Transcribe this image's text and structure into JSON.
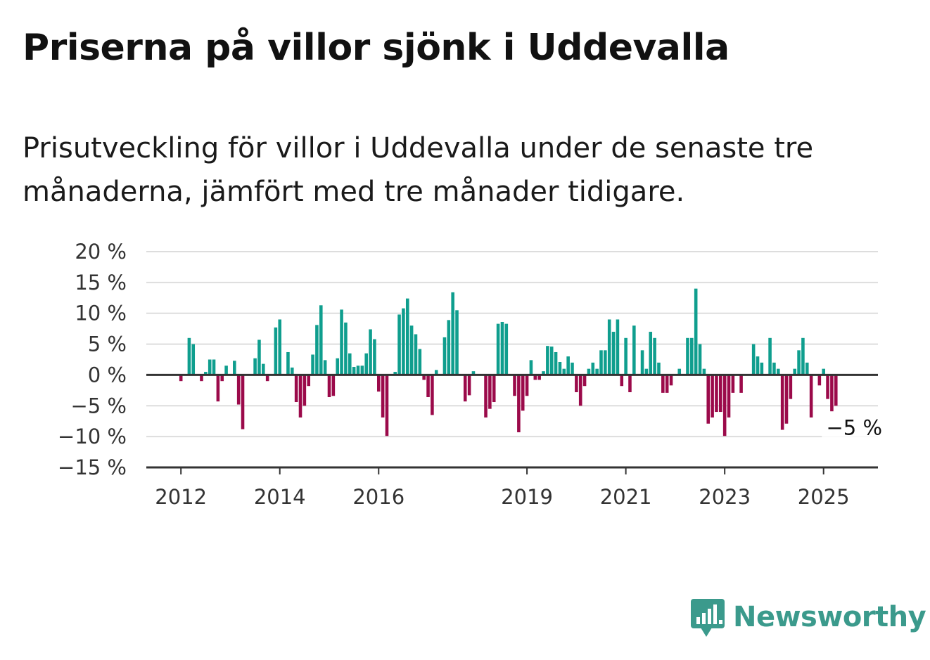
{
  "title": "Priserna på villor sjönk i Uddevalla",
  "subtitle": "Prisutveckling för villor i Uddevalla under de senaste tre månaderna, jämfört med tre månader tidigare.",
  "brand": "Newsworthy",
  "colors": {
    "positive": "#0f9e8e",
    "negative": "#9b0a4a",
    "brand": "#3b9a8c",
    "grid": "#dddddd",
    "axis": "#333333"
  },
  "chart_data": {
    "type": "bar",
    "title": "Priserna på villor sjönk i Uddevalla",
    "xlabel": "",
    "ylabel": "",
    "ylim": [
      -15,
      20
    ],
    "y_ticks": [
      20,
      15,
      10,
      5,
      0,
      -5,
      -10,
      -15
    ],
    "y_tick_labels": [
      "20 %",
      "15 %",
      "10 %",
      "5 %",
      "0 %",
      "−5 %",
      "−10 %",
      "−15 %"
    ],
    "x_range": [
      2011.3,
      2026.1
    ],
    "x_ticks": [
      2012,
      2014,
      2016,
      2019,
      2021,
      2023,
      2025
    ],
    "x_tick_labels": [
      "2012",
      "2014",
      "2016",
      "2019",
      "2021",
      "2023",
      "2025"
    ],
    "grid": true,
    "end_label": "−5 %",
    "series": [
      {
        "start": 2012.0,
        "step_months": 1,
        "values": [
          -1,
          0,
          6,
          5,
          0,
          -1,
          0.5,
          2.5,
          2.5,
          -4.3,
          -1,
          1.5,
          0,
          2.3,
          -4.8,
          -8.8,
          0,
          0,
          2.7,
          5.7,
          1.8,
          -1,
          0,
          7.7,
          9,
          0,
          3.7,
          1.2,
          -4.4,
          -6.9,
          -5,
          -1.8,
          3.3,
          8.1,
          11.3,
          2.4,
          -3.6,
          -3.4,
          2.7,
          10.6,
          8.5,
          3.5,
          1.3,
          1.5,
          1.5,
          3.5,
          7.4,
          5.8,
          -2.7,
          -6.9,
          -9.9,
          0,
          0.5,
          9.8,
          10.8,
          12.4,
          8,
          6.6,
          4.2,
          -0.8,
          -3.6,
          -6.5,
          0.8,
          0,
          6.1,
          8.9,
          13.4,
          10.5,
          0,
          -4.3,
          -3.3,
          0.6,
          0,
          0,
          -6.9,
          -5.5,
          -4.4,
          8.3,
          8.6,
          8.3,
          0,
          -3.4,
          -9.3,
          -5.8,
          -3.4,
          2.4,
          -0.8,
          -0.8,
          0.6,
          4.7,
          4.6,
          3.7,
          2.1,
          1,
          3,
          2,
          -2.8,
          -5,
          -1.8,
          1,
          2,
          1,
          4,
          4,
          9,
          7,
          9,
          -1.8,
          6,
          -2.8,
          8,
          0,
          4,
          1,
          7,
          6,
          2,
          -2.9,
          -2.9,
          -1.7,
          0,
          1,
          0,
          6,
          6,
          14,
          5,
          1,
          -7.9,
          -6.9,
          -6,
          -6,
          -9.9,
          -6.9,
          -2.9,
          0,
          -2.9,
          0,
          0,
          5,
          3,
          2,
          0,
          6,
          2,
          1,
          -8.9,
          -7.9,
          -3.9,
          1,
          4,
          6,
          2,
          -6.9,
          0,
          -1.7,
          1,
          -3.9,
          -5.9,
          -5
        ]
      }
    ]
  }
}
